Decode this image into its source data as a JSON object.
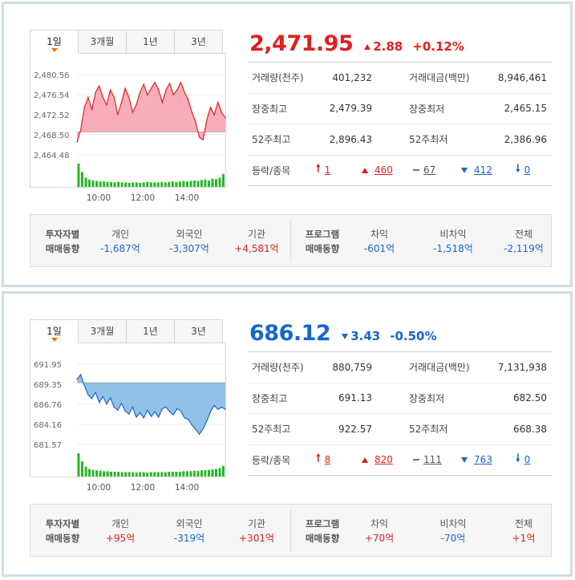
{
  "tabs": [
    "1일",
    "3개월",
    "1년",
    "3년"
  ],
  "stat_labels": {
    "volume": "거래량(천주)",
    "amount": "거래대금(백만)",
    "high": "장중최고",
    "low": "장중최저",
    "high52": "52주최고",
    "low52": "52주최저",
    "updown": "등락/종목"
  },
  "flow_labels": {
    "investor": [
      "투자자별",
      "매매동향"
    ],
    "personal": "개인",
    "foreign": "외국인",
    "institution": "기관",
    "program": [
      "프로그램",
      "매매동향"
    ],
    "arbitrage": "차익",
    "nonarb": "비차익",
    "total": "전체"
  },
  "colors": {
    "up": "#e02020",
    "down": "#1766cc",
    "up_fill": "#f7a0ae",
    "down_fill": "#7fb6e3",
    "volume_bar": "#29b829"
  },
  "panels": [
    {
      "direction": "up",
      "price": "2,471.95",
      "change": "2.88",
      "percent": "+0.12%",
      "volume": "401,232",
      "amount": "8,946,461",
      "high": "2,479.39",
      "low": "2,465.15",
      "high52": "2,896.43",
      "low52": "2,386.96",
      "updown": {
        "limit_up": "1",
        "up": "460",
        "flat": "67",
        "down": "412",
        "limit_down": "0"
      },
      "flows": {
        "personal": "-1,687억",
        "foreign": "-3,307억",
        "institution": "+4,581억",
        "arbitrage": "-601억",
        "nonarb": "-1,518억",
        "total": "-2,119억"
      },
      "flow_dirs": {
        "personal": "down",
        "foreign": "down",
        "institution": "up",
        "arbitrage": "down",
        "nonarb": "down",
        "total": "down"
      },
      "chart_data": {
        "type": "area",
        "y_ticks": [
          "2,480.56",
          "2,476.54",
          "2,472.52",
          "2,468.50",
          "2,464.48"
        ],
        "ylim": [
          2464.48,
          2480.56
        ],
        "x_ticks": [
          "10:00",
          "12:00",
          "14:00"
        ],
        "baseline": 2469.07,
        "values": [
          2467.0,
          2469.5,
          2474.0,
          2476.0,
          2473.5,
          2477.0,
          2478.3,
          2476.0,
          2474.5,
          2477.5,
          2476.0,
          2472.5,
          2475.0,
          2477.8,
          2476.0,
          2473.0,
          2474.5,
          2477.0,
          2478.6,
          2476.5,
          2477.8,
          2479.0,
          2477.5,
          2475.0,
          2477.5,
          2478.8,
          2476.5,
          2477.5,
          2479.0,
          2477.0,
          2475.5,
          2473.0,
          2471.0,
          2468.0,
          2467.5,
          2471.5,
          2474.0,
          2472.5,
          2475.0,
          2473.0,
          2471.9
        ],
        "volume": [
          48,
          30,
          18,
          14,
          12,
          11,
          10,
          10,
          9,
          9,
          8,
          9,
          8,
          8,
          7,
          8,
          8,
          7,
          8,
          9,
          8,
          8,
          8,
          9,
          8,
          9,
          10,
          9,
          10,
          11,
          10,
          11,
          12,
          11,
          13,
          14,
          12,
          16,
          15,
          18,
          26
        ]
      }
    },
    {
      "direction": "down",
      "price": "686.12",
      "change": "3.43",
      "percent": "-0.50%",
      "volume": "880,759",
      "amount": "7,131,938",
      "high": "691.13",
      "low": "682.50",
      "high52": "922.57",
      "low52": "668.38",
      "updown": {
        "limit_up": "8",
        "up": "820",
        "flat": "111",
        "down": "763",
        "limit_down": "0"
      },
      "flows": {
        "personal": "+95억",
        "foreign": "-319억",
        "institution": "+301억",
        "arbitrage": "+70억",
        "nonarb": "-70억",
        "total": "+1억"
      },
      "flow_dirs": {
        "personal": "up",
        "foreign": "down",
        "institution": "up",
        "arbitrage": "up",
        "nonarb": "down",
        "total": "up"
      },
      "chart_data": {
        "type": "area",
        "y_ticks": [
          "691.95",
          "689.35",
          "686.76",
          "684.16",
          "681.57"
        ],
        "ylim": [
          681.57,
          691.95
        ],
        "x_ticks": [
          "10:00",
          "12:00",
          "14:00"
        ],
        "baseline": 689.55,
        "values": [
          690.0,
          690.6,
          689.2,
          688.0,
          687.5,
          688.3,
          687.0,
          687.8,
          686.8,
          687.6,
          686.4,
          686.0,
          686.9,
          685.9,
          685.5,
          686.4,
          685.1,
          685.7,
          685.0,
          686.0,
          685.2,
          685.8,
          685.1,
          686.2,
          686.4,
          685.8,
          685.4,
          686.2,
          685.9,
          685.0,
          684.8,
          684.1,
          683.5,
          682.9,
          683.6,
          684.6,
          685.8,
          686.6,
          686.1,
          686.4,
          686.1
        ],
        "volume": [
          50,
          32,
          20,
          15,
          13,
          12,
          11,
          10,
          10,
          9,
          9,
          9,
          8,
          8,
          8,
          8,
          7,
          8,
          8,
          7,
          8,
          8,
          8,
          8,
          8,
          9,
          9,
          9,
          9,
          10,
          10,
          10,
          11,
          11,
          12,
          12,
          13,
          14,
          15,
          17,
          22
        ]
      }
    }
  ]
}
